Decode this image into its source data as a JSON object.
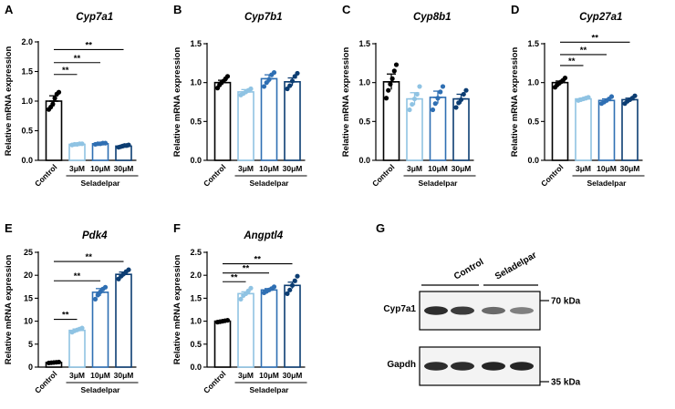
{
  "chart_data": [
    {
      "panel": "A",
      "title": "Cyp7a1",
      "type": "bar",
      "ylabel": "Relative mRNA expression",
      "ylim": [
        0,
        2.0
      ],
      "yticks": [
        "0.0",
        "0.5",
        "1.0",
        "1.5",
        "2.0"
      ],
      "ytick_values": [
        0,
        0.5,
        1.0,
        1.5,
        2.0
      ],
      "categories": [
        "Control",
        "3μM",
        "10μM",
        "30μM"
      ],
      "group_label": "Seladelpar",
      "colors": [
        "#000000",
        "#8fc3e3",
        "#2f6fb3",
        "#0c3d72"
      ],
      "values": [
        1.0,
        0.27,
        0.28,
        0.24
      ],
      "errors": [
        0.09,
        0.01,
        0.01,
        0.01
      ],
      "points": [
        [
          0.86,
          0.9,
          0.95,
          1.05,
          1.12,
          1.15
        ],
        [
          0.26,
          0.27,
          0.27,
          0.28,
          0.28
        ],
        [
          0.27,
          0.28,
          0.28,
          0.29,
          0.29
        ],
        [
          0.22,
          0.23,
          0.24,
          0.25,
          0.25,
          0.26
        ]
      ],
      "significance": [
        {
          "to": 1,
          "y": 1.45,
          "label": "**"
        },
        {
          "to": 2,
          "y": 1.65,
          "label": "**"
        },
        {
          "to": 3,
          "y": 1.87,
          "label": "**"
        }
      ]
    },
    {
      "panel": "B",
      "title": "Cyp7b1",
      "type": "bar",
      "ylabel": "Relative mRNA expression",
      "ylim": [
        0,
        1.5
      ],
      "yticks": [
        "0.0",
        "0.5",
        "1.0",
        "1.5"
      ],
      "ytick_values": [
        0,
        0.5,
        1.0,
        1.5
      ],
      "categories": [
        "Control",
        "3μM",
        "10μM",
        "30μM"
      ],
      "group_label": "Seladelpar",
      "colors": [
        "#000000",
        "#8fc3e3",
        "#2f6fb3",
        "#0c3d72"
      ],
      "values": [
        1.0,
        0.88,
        1.05,
        1.01
      ],
      "errors": [
        0.03,
        0.03,
        0.05,
        0.05
      ],
      "points": [
        [
          0.93,
          0.97,
          1.0,
          1.02,
          1.05,
          1.08
        ],
        [
          0.84,
          0.86,
          0.88,
          0.9,
          0.92
        ],
        [
          0.95,
          1.0,
          1.04,
          1.1,
          1.13
        ],
        [
          0.92,
          0.96,
          1.02,
          1.08,
          1.12
        ]
      ],
      "significance": []
    },
    {
      "panel": "C",
      "title": "Cyp8b1",
      "type": "bar",
      "ylabel": "Relative mRNA expression",
      "ylim": [
        0,
        1.5
      ],
      "yticks": [
        "0.0",
        "0.5",
        "1.0",
        "1.5"
      ],
      "ytick_values": [
        0,
        0.5,
        1.0,
        1.5
      ],
      "categories": [
        "Control",
        "3μM",
        "10μM",
        "30μM"
      ],
      "group_label": "Seladelpar",
      "colors": [
        "#000000",
        "#8fc3e3",
        "#2f6fb3",
        "#0c3d72"
      ],
      "values": [
        1.01,
        0.79,
        0.81,
        0.79
      ],
      "errors": [
        0.1,
        0.08,
        0.08,
        0.06
      ],
      "points": [
        [
          0.8,
          0.9,
          0.98,
          1.05,
          1.15,
          1.23
        ],
        [
          0.65,
          0.72,
          0.79,
          0.85,
          0.95
        ],
        [
          0.65,
          0.73,
          0.8,
          0.88,
          0.95
        ],
        [
          0.68,
          0.74,
          0.78,
          0.85,
          0.9
        ]
      ],
      "significance": []
    },
    {
      "panel": "D",
      "title": "Cyp27a1",
      "type": "bar",
      "ylabel": "Relative mRNA expression",
      "ylim": [
        0,
        1.5
      ],
      "yticks": [
        "0.0",
        "0.5",
        "1.0",
        "1.5"
      ],
      "ytick_values": [
        0,
        0.5,
        1.0,
        1.5
      ],
      "categories": [
        "Control",
        "3μM",
        "10μM",
        "30μM"
      ],
      "group_label": "Seladelpar",
      "colors": [
        "#000000",
        "#8fc3e3",
        "#2f6fb3",
        "#0c3d72"
      ],
      "values": [
        1.0,
        0.79,
        0.77,
        0.78
      ],
      "errors": [
        0.02,
        0.01,
        0.02,
        0.02
      ],
      "points": [
        [
          0.94,
          0.97,
          0.99,
          1.01,
          1.03,
          1.06
        ],
        [
          0.77,
          0.78,
          0.79,
          0.8,
          0.81
        ],
        [
          0.73,
          0.75,
          0.77,
          0.79,
          0.82
        ],
        [
          0.73,
          0.76,
          0.78,
          0.8,
          0.83
        ]
      ],
      "significance": [
        {
          "to": 1,
          "y": 1.22,
          "label": "**"
        },
        {
          "to": 2,
          "y": 1.36,
          "label": "**"
        },
        {
          "to": 3,
          "y": 1.52,
          "label": "**"
        }
      ]
    },
    {
      "panel": "E",
      "title": "Pdk4",
      "type": "bar",
      "ylabel": "Relative mRNA expression",
      "ylim": [
        0,
        25
      ],
      "yticks": [
        "0",
        "5",
        "10",
        "15",
        "20",
        "25"
      ],
      "ytick_values": [
        0,
        5,
        10,
        15,
        20,
        25
      ],
      "categories": [
        "Control",
        "3μM",
        "10μM",
        "30μM"
      ],
      "group_label": "Seladelpar",
      "colors": [
        "#000000",
        "#8fc3e3",
        "#2f6fb3",
        "#0c3d72"
      ],
      "values": [
        1.0,
        8.0,
        16.3,
        20.2
      ],
      "errors": [
        0.1,
        0.3,
        0.8,
        0.5
      ],
      "points": [
        [
          0.9,
          0.95,
          1.0,
          1.05,
          1.1
        ],
        [
          7.6,
          7.9,
          8.1,
          8.3,
          8.5
        ],
        [
          14.8,
          15.7,
          16.4,
          17.0,
          17.4
        ],
        [
          19.2,
          19.8,
          20.3,
          20.8,
          21.2
        ]
      ],
      "significance": [
        {
          "from": 0,
          "to": 1,
          "y": 10.4,
          "label": "**"
        },
        {
          "from": 0,
          "to": 2,
          "y": 18.8,
          "label": "**"
        },
        {
          "from": 0,
          "to": 3,
          "y": 23.0,
          "label": "**"
        }
      ]
    },
    {
      "panel": "F",
      "title": "Angptl4",
      "type": "bar",
      "ylabel": "Relative mRNA expression",
      "ylim": [
        0,
        2.5
      ],
      "yticks": [
        "0.0",
        "0.5",
        "1.0",
        "1.5",
        "2.0",
        "2.5"
      ],
      "ytick_values": [
        0,
        0.5,
        1.0,
        1.5,
        2.0,
        2.5
      ],
      "categories": [
        "Control",
        "3μM",
        "10μM",
        "30μM"
      ],
      "group_label": "Seladelpar",
      "colors": [
        "#000000",
        "#8fc3e3",
        "#2f6fb3",
        "#0c3d72"
      ],
      "values": [
        1.0,
        1.6,
        1.68,
        1.78
      ],
      "errors": [
        0.01,
        0.04,
        0.03,
        0.07
      ],
      "points": [
        [
          0.98,
          0.99,
          1.0,
          1.01,
          1.02
        ],
        [
          1.48,
          1.56,
          1.6,
          1.66,
          1.72
        ],
        [
          1.62,
          1.65,
          1.68,
          1.71,
          1.75
        ],
        [
          1.6,
          1.68,
          1.78,
          1.88,
          1.98
        ]
      ],
      "significance": [
        {
          "to": 1,
          "y": 1.86,
          "label": "**"
        },
        {
          "to": 2,
          "y": 2.05,
          "label": "**"
        },
        {
          "to": 3,
          "y": 2.25,
          "label": "**"
        }
      ]
    }
  ],
  "western_blot": {
    "panel": "G",
    "groups": [
      "Control",
      "Seladelpar"
    ],
    "rows": [
      {
        "name": "Cyp7a1",
        "marker": "70 kDa",
        "intensities": [
          0.95,
          0.85,
          0.55,
          0.4
        ]
      },
      {
        "name": "Gapdh",
        "marker": "35 kDa",
        "intensities": [
          0.95,
          0.95,
          1.0,
          1.0
        ]
      }
    ]
  }
}
